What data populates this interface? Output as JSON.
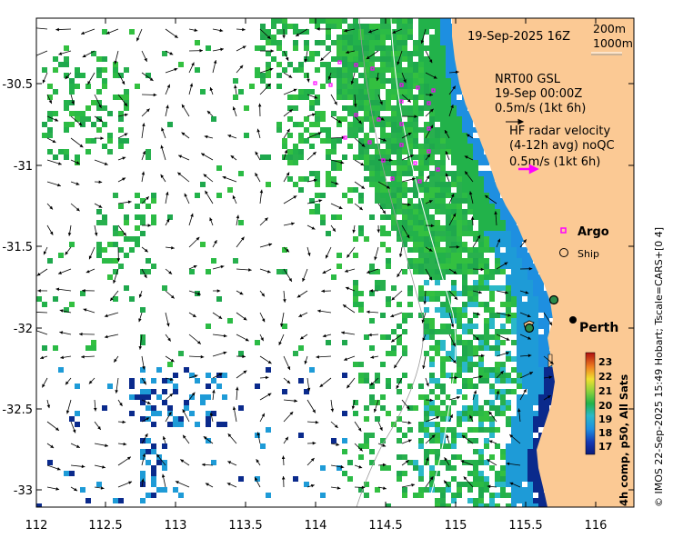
{
  "map": {
    "date_title": "19-Sep-2025 16Z",
    "isobath_labels": [
      "200m",
      "1000m"
    ],
    "model_info": [
      "NRT00 GSL",
      "19-Sep 00:00Z",
      "0.5m/s (1kt 6h)"
    ],
    "radar_info": [
      "HF radar velocity",
      "(4-12h avg) noQC",
      "0.5m/s (1kt 6h)"
    ],
    "legend": {
      "argo": "Argo",
      "ship": "Ship"
    },
    "city": "Perth",
    "colorbar": {
      "title": "4h comp, p50, All Sats",
      "ticks": [
        "23",
        "22",
        "21",
        "20",
        "19",
        "18",
        "17"
      ]
    },
    "credit": "© IMOS 22-Sep-2025 15:49 Hobart; Tscale=CARS+[0 4]",
    "lon_ticks": [
      "112",
      "112.5",
      "113",
      "113.5",
      "114",
      "114.5",
      "115",
      "115.5",
      "116"
    ],
    "lat_ticks": [
      "-30.5",
      "-31",
      "-31.5",
      "-32",
      "-32.5",
      "-33"
    ],
    "colors": {
      "land": "#fbc994",
      "arrow_model": "#000000",
      "arrow_radar": "#ff00ff",
      "argo": "#ff00ff",
      "sst_warm": "#22b24a",
      "sst_cool": "#1e9bd7",
      "sst_cold": "#0a2a8c"
    }
  }
}
